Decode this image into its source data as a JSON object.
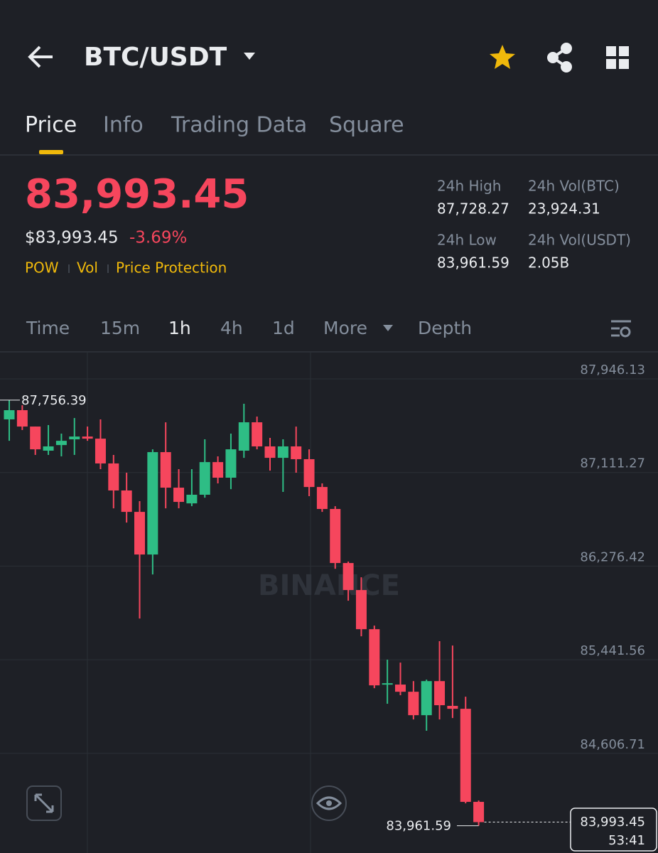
{
  "header": {
    "title": "BTC/USDT"
  },
  "tabs": [
    "Price",
    "Info",
    "Trading Data",
    "Square"
  ],
  "price": {
    "last": "83,993.45",
    "usd": "$83,993.45",
    "change": "-3.69%",
    "tags": [
      "POW",
      "Vol",
      "Price Protection"
    ]
  },
  "stats": [
    {
      "label": "24h High",
      "value": "87,728.27"
    },
    {
      "label": "24h Vol(BTC)",
      "value": "23,924.31"
    },
    {
      "label": "24h Low",
      "value": "83,961.59"
    },
    {
      "label": "24h Vol(USDT)",
      "value": "2.05B"
    }
  ],
  "intervals": [
    "Time",
    "15m",
    "1h",
    "4h",
    "1d",
    "More",
    "Depth"
  ],
  "chart_data": {
    "type": "candlestick",
    "watermark": "BINANCE",
    "open": [
      87585,
      87667,
      87521,
      87306,
      87356,
      87407,
      87432,
      87413,
      87192,
      86951,
      86760,
      86380,
      87293,
      86976,
      86836,
      86913,
      87204,
      87065,
      87306,
      87559,
      87344,
      87242,
      87344,
      87230,
      86982,
      86786,
      86304,
      86063,
      85714,
      85220,
      85220,
      85156,
      84947,
      85251,
      85030,
      85004,
      84174
    ],
    "high": [
      87756.39,
      87711,
      87521,
      87534,
      87458,
      87597,
      87521,
      87585,
      87268,
      87109,
      86856,
      87318,
      87559,
      87141,
      87141,
      87407,
      87255,
      87458,
      87724,
      87610,
      87420,
      87407,
      87521,
      87318,
      87014,
      86811,
      86317,
      86177,
      85746,
      85442,
      85416,
      85251,
      85264,
      85607,
      85568,
      85112,
      84186
    ],
    "low": [
      87394,
      87490,
      87268,
      87268,
      87255,
      87268,
      87394,
      87141,
      86792,
      86665,
      85809,
      86202,
      86792,
      86792,
      86811,
      86887,
      87014,
      86963,
      87242,
      87318,
      87128,
      86938,
      87109,
      86900,
      86760,
      86253,
      85968,
      85651,
      85188,
      85049,
      85125,
      84909,
      84808,
      84909,
      84922,
      84161,
      83961.59
    ],
    "close": [
      87667,
      87521,
      87318,
      87344,
      87394,
      87432,
      87413,
      87192,
      86951,
      86760,
      86380,
      87293,
      86976,
      86849,
      86913,
      87204,
      87065,
      87318,
      87559,
      87344,
      87242,
      87344,
      87230,
      86982,
      86786,
      86304,
      86063,
      85714,
      85213,
      85232,
      85156,
      84947,
      85251,
      85036,
      85004,
      84174,
      83993.45
    ],
    "up_color": "#2ebd85",
    "down_color": "#f6465d",
    "ylim": [
      83718,
      88187
    ],
    "yticks": [
      {
        "value": 87946.13,
        "label": "87,946.13"
      },
      {
        "value": 87111.27,
        "label": "87,111.27"
      },
      {
        "value": 86276.42,
        "label": "86,276.42"
      },
      {
        "value": 85441.56,
        "label": "85,441.56"
      },
      {
        "value": 84606.71,
        "label": "84,606.71"
      }
    ],
    "grid": true,
    "high_marker": {
      "value": 87756.39,
      "label": "87,756.39"
    },
    "low_marker": {
      "value": 83961.59,
      "label": "83,961.59"
    },
    "last_price": {
      "value": 83993.45,
      "label": "83,993.45"
    },
    "countdown": "53:41"
  }
}
